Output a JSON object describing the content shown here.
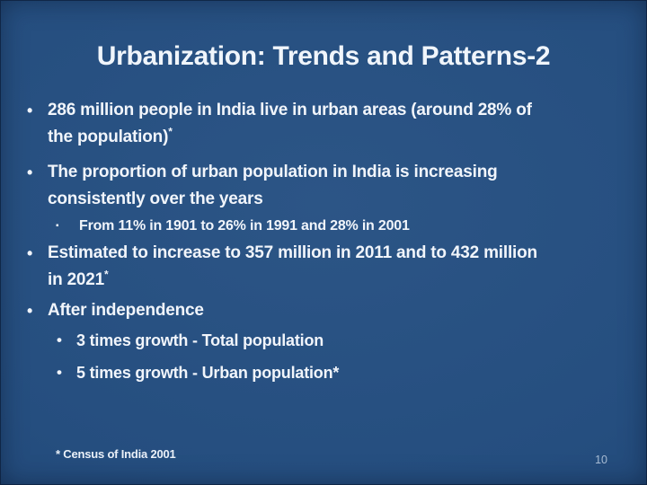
{
  "slide": {
    "title": "Urbanization: Trends and Patterns-2",
    "bullets": [
      {
        "marker": "•",
        "text": "286 million people in India live in urban areas (around 28% of\nthe population)",
        "sup": "*"
      },
      {
        "marker": "•",
        "text": "The proportion of urban population in India is increasing\nconsistently over the years",
        "sup": ""
      },
      {
        "marker": "▪",
        "text": "From 11% in 1901 to 26% in 1991 and 28% in 2001",
        "sup": ""
      },
      {
        "marker": "•",
        "text": "Estimated to increase to 357 million in 2011 and to 432 million\nin 2021",
        "sup": "*"
      },
      {
        "marker": "•",
        "text": "After independence",
        "sup": ""
      },
      {
        "marker": "•",
        "text": "3 times growth - Total population",
        "sup": ""
      },
      {
        "marker": "•",
        "text": "5 times growth - Urban population*",
        "sup": ""
      }
    ],
    "footnote": "* Census of India 2001",
    "page_number": "10",
    "colors": {
      "background_center": "#2c5586",
      "background_edge": "#1d4170",
      "text": "#f1f5fb",
      "page_number": "#a7bbd3"
    }
  }
}
